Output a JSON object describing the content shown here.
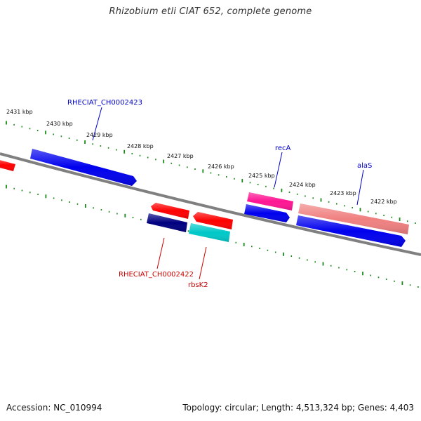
{
  "title": "Rhizobium etli CIAT 652, complete genome",
  "footer": {
    "accession": "Accession: NC_010994",
    "summary": "Topology: circular; Length: 4,513,324 bp; Genes: 4,403"
  },
  "ticks": [
    "2431 kbp",
    "2430 kbp",
    "2429 kbp",
    "2428 kbp",
    "2427 kbp",
    "2426 kbp",
    "2425 kbp",
    "2424 kbp",
    "2423 kbp",
    "2422 kbp"
  ],
  "gene_labels": {
    "rheciat_2423": "RHECIAT_CH0002423",
    "reca": "recA",
    "alas": "alaS",
    "rheciat_2422": "RHECIAT_CH0002422",
    "rbsk2": "rbsK2"
  },
  "colors": {
    "backbone": "#808080",
    "tick": "#1a8a1a",
    "label_upper": "#0000c8",
    "label_lower": "#cc0000"
  }
}
